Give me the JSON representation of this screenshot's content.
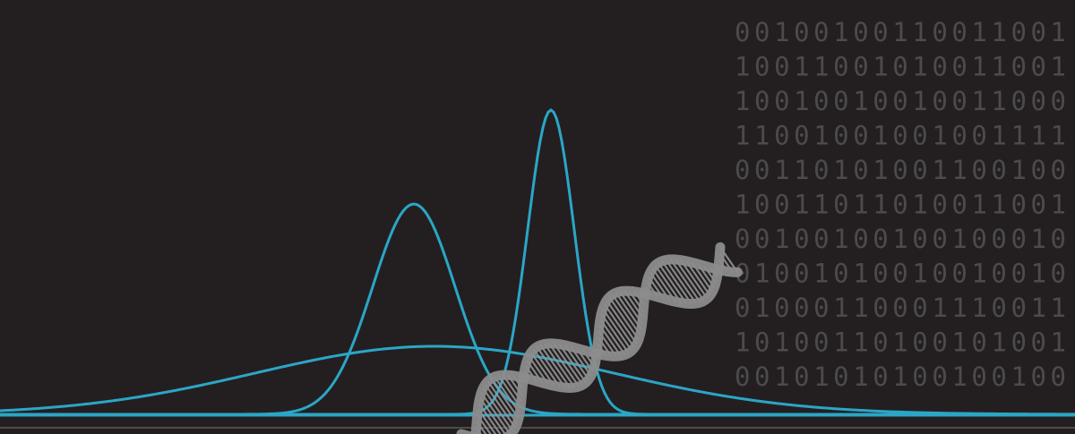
{
  "binary_rows": [
    "00100100110011001",
    "10011001010011001",
    "10010010010011000",
    "11001001001001111",
    "00110101001100100",
    "10011011010011001",
    "00100100100100010",
    "01001010010010010",
    "01000110001110011",
    "10100110100101001",
    "00101010100100100"
  ]
}
